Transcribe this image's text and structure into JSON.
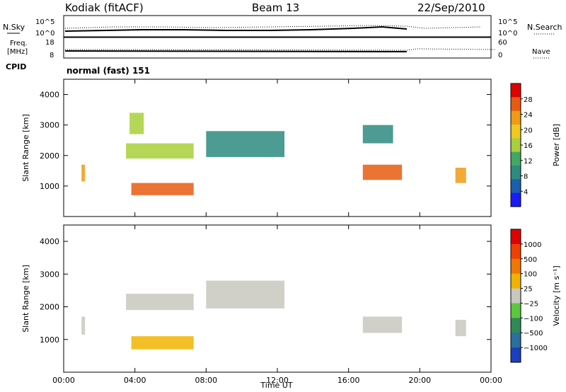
{
  "header": {
    "station": "Kodiak (fitACF)",
    "beam": "Beam 13",
    "date": "22/Sep/2010"
  },
  "top_panels": {
    "nsky_label": "N.Sky",
    "nsearch_label": "N.Search",
    "noise_ticks": [
      "10^5",
      "10^0"
    ],
    "freq_label_1": "Freq.",
    "freq_label_2": "[MHz]",
    "freq_ticks": [
      "18",
      "8"
    ],
    "nave_label": "Nave",
    "nave_ticks": [
      "60",
      "0"
    ],
    "cpid_label": "CPID",
    "cpid_value": "normal (fast) 151"
  },
  "chart_data": [
    {
      "type": "heatmap",
      "name": "power",
      "ylabel": "Slant Range [km]",
      "yticks": [
        "1000",
        "2000",
        "3000",
        "4000"
      ],
      "colorbar_label": "Power [dB]",
      "colorbar_ticks": [
        "4",
        "8",
        "12",
        "16",
        "20",
        "24",
        "28"
      ],
      "colorbar_colors": [
        "#1a1aff",
        "#1a5fb0",
        "#2e8b80",
        "#42a862",
        "#a8d03a",
        "#f0c81e",
        "#f09a14",
        "#e85a10",
        "#e00000"
      ],
      "regions": [
        {
          "t0": 1.0,
          "t1": 1.2,
          "r0": 1150,
          "r1": 1700,
          "level": 0.75
        },
        {
          "t0": 3.8,
          "t1": 7.3,
          "r0": 700,
          "r1": 1100,
          "level": 0.92
        },
        {
          "t0": 3.5,
          "t1": 7.3,
          "r0": 1900,
          "r1": 2400,
          "level": 0.45
        },
        {
          "t0": 3.7,
          "t1": 4.5,
          "r0": 2700,
          "r1": 3400,
          "level": 0.55
        },
        {
          "t0": 8.0,
          "t1": 12.4,
          "r0": 1950,
          "r1": 2800,
          "level": 0.25
        },
        {
          "t0": 16.8,
          "t1": 19.0,
          "r0": 1200,
          "r1": 1700,
          "level": 0.85
        },
        {
          "t0": 16.8,
          "t1": 18.5,
          "r0": 2400,
          "r1": 3000,
          "level": 0.3
        },
        {
          "t0": 22.0,
          "t1": 22.6,
          "r0": 1100,
          "r1": 1600,
          "level": 0.7
        }
      ]
    },
    {
      "type": "heatmap",
      "name": "velocity",
      "ylabel": "Slant Range [km]",
      "yticks": [
        "1000",
        "2000",
        "3000",
        "4000"
      ],
      "xlabel": "Time UT",
      "xticks": [
        "00:00",
        "04:00",
        "08:00",
        "12:00",
        "16:00",
        "20:00",
        "00:00"
      ],
      "colorbar_label": "Velocity [m s⁻¹]",
      "colorbar_ticks": [
        "1000",
        "500",
        "100",
        "25",
        "−25",
        "−100",
        "−500",
        "−1000"
      ],
      "colorbar_colors": [
        "#1a3fc0",
        "#2a6fa0",
        "#2e8b57",
        "#5cc83c",
        "#c8c8c0",
        "#f0b400",
        "#f07800",
        "#f04000",
        "#e00000"
      ],
      "regions": [
        {
          "t0": 1.0,
          "t1": 1.2,
          "r0": 1150,
          "r1": 1700,
          "level": 0.5
        },
        {
          "t0": 3.8,
          "t1": 7.3,
          "r0": 700,
          "r1": 1100,
          "level": 0.62
        },
        {
          "t0": 3.5,
          "t1": 7.3,
          "r0": 1900,
          "r1": 2400,
          "level": 0.5
        },
        {
          "t0": 8.0,
          "t1": 12.4,
          "r0": 1950,
          "r1": 2800,
          "level": 0.5
        },
        {
          "t0": 16.8,
          "t1": 19.0,
          "r0": 1200,
          "r1": 1700,
          "level": 0.5
        },
        {
          "t0": 22.0,
          "t1": 22.6,
          "r0": 1100,
          "r1": 1600,
          "level": 0.5
        }
      ]
    }
  ]
}
